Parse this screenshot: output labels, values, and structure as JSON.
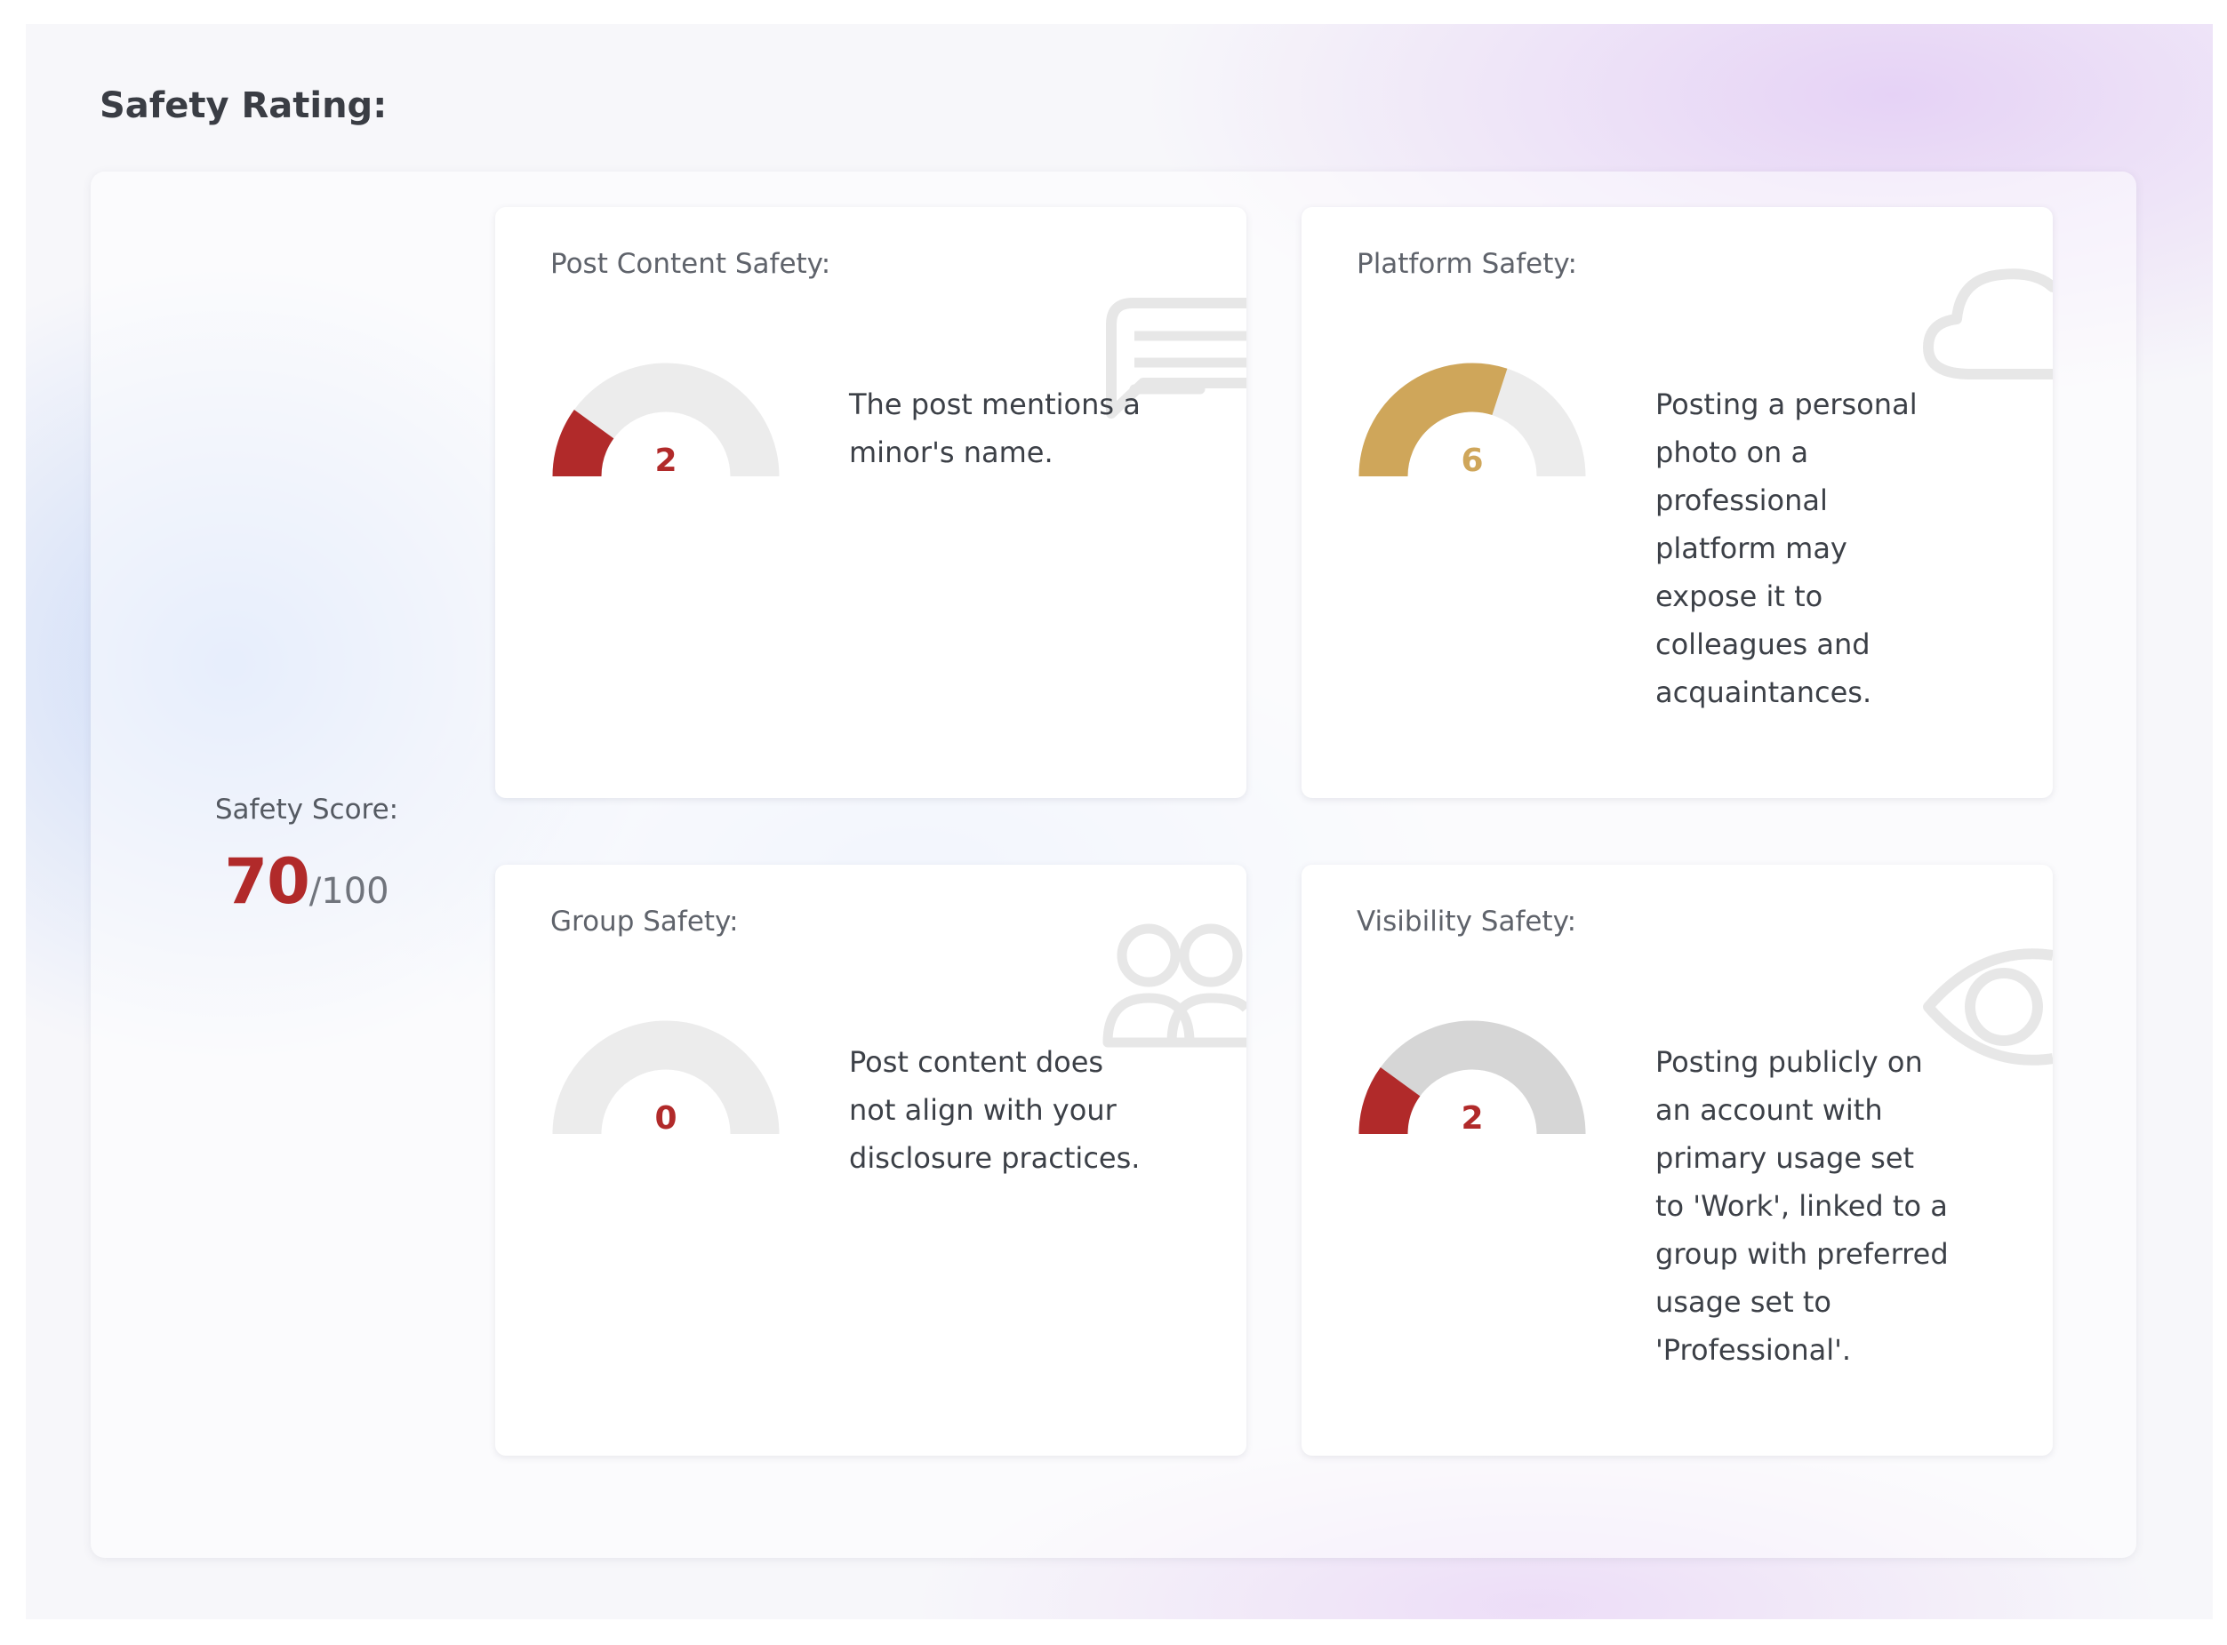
{
  "page": {
    "title": "Safety Rating:"
  },
  "score": {
    "label": "Safety Score:",
    "value": "70",
    "max": "/100",
    "color": "#b12a2a"
  },
  "cards": [
    {
      "title": "Post Content Safety:",
      "icon": "speech-bubble-icon",
      "gauge_value": "2",
      "gauge_fraction": 0.2,
      "gauge_color": "#b12a2a",
      "track_color": "#ececec",
      "text": "The post mentions a minor's name."
    },
    {
      "title": "Platform Safety:",
      "icon": "cloud-icon",
      "gauge_value": "6",
      "gauge_fraction": 0.6,
      "gauge_color": "#cfa65a",
      "track_color": "#ececec",
      "text": "Posting a personal photo on a professional platform may expose it to colleagues and acquaintances."
    },
    {
      "title": "Group Safety:",
      "icon": "users-icon",
      "gauge_value": "0",
      "gauge_fraction": 0.0,
      "gauge_color": "#b12a2a",
      "track_color": "#ececec",
      "text": "Post content does not align with your disclosure practices."
    },
    {
      "title": "Visibility Safety:",
      "icon": "eye-icon",
      "gauge_value": "2",
      "gauge_fraction": 0.2,
      "gauge_color": "#b12a2a",
      "track_color": "#d6d6d6",
      "text": "Posting publicly on an account with primary usage set to 'Work', linked to a group with preferred usage set to 'Professional'."
    }
  ]
}
